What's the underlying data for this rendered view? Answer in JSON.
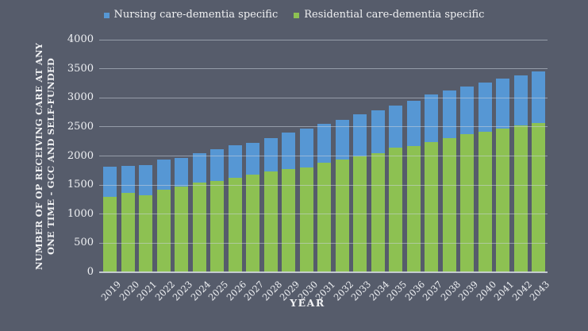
{
  "colors": {
    "background": "#565c6b",
    "gridline": "#cbd1db",
    "text": "#f0f1f3",
    "nursing_blue": "#5697d4",
    "residential_green": "#8dc152"
  },
  "legend": {
    "items": [
      {
        "label": "Nursing care-dementia specific",
        "color": "#5697d4"
      },
      {
        "label": "Residential care-dementia specific",
        "color": "#8dc152"
      }
    ]
  },
  "y_axis": {
    "title_line1": "NUMBER OF OP RECEIVING CARE AT ANY",
    "title_line2": "ONE TIME - GCC AND SELF-FUNDED",
    "tick_values": [
      0,
      500,
      1000,
      1500,
      2000,
      2500,
      3000,
      3500,
      4000
    ]
  },
  "x_axis": {
    "title": "YEAR"
  },
  "chart_data": {
    "type": "bar",
    "stacked": true,
    "title": "",
    "categories": [
      "2019",
      "2020",
      "2021",
      "2022",
      "2023",
      "2024",
      "2025",
      "2026",
      "2027",
      "2028",
      "2029",
      "2030",
      "2031",
      "2032",
      "2033",
      "2034",
      "2035",
      "2036",
      "2037",
      "2038",
      "2039",
      "2040",
      "2041",
      "2042",
      "2043"
    ],
    "series": [
      {
        "name": "Residential care-dementia specific",
        "color": "#8dc152",
        "values": [
          1300,
          1360,
          1320,
          1420,
          1470,
          1540,
          1575,
          1625,
          1675,
          1730,
          1775,
          1800,
          1880,
          1935,
          1990,
          2045,
          2140,
          2175,
          2245,
          2310,
          2370,
          2420,
          2470,
          2530,
          2560
        ]
      },
      {
        "name": "Nursing care-dementia specific",
        "color": "#5697d4",
        "values": [
          510,
          475,
          520,
          525,
          500,
          510,
          535,
          555,
          555,
          575,
          630,
          675,
          670,
          690,
          725,
          745,
          730,
          770,
          810,
          815,
          825,
          850,
          860,
          860,
          895
        ]
      }
    ],
    "stack_totals": [
      1810,
      1835,
      1840,
      1945,
      1970,
      2050,
      2110,
      2180,
      2230,
      2305,
      2405,
      2475,
      2550,
      2625,
      2715,
      2790,
      2870,
      2945,
      3055,
      3125,
      3195,
      3270,
      3330,
      3390,
      3455
    ],
    "xlabel": "YEAR",
    "ylabel": "NUMBER OF OP RECEIVING CARE AT ANY ONE TIME - GCC AND SELF-FUNDED",
    "ylim": [
      0,
      4000
    ],
    "ytick_step": 500,
    "grid": true,
    "legend_position": "top"
  }
}
